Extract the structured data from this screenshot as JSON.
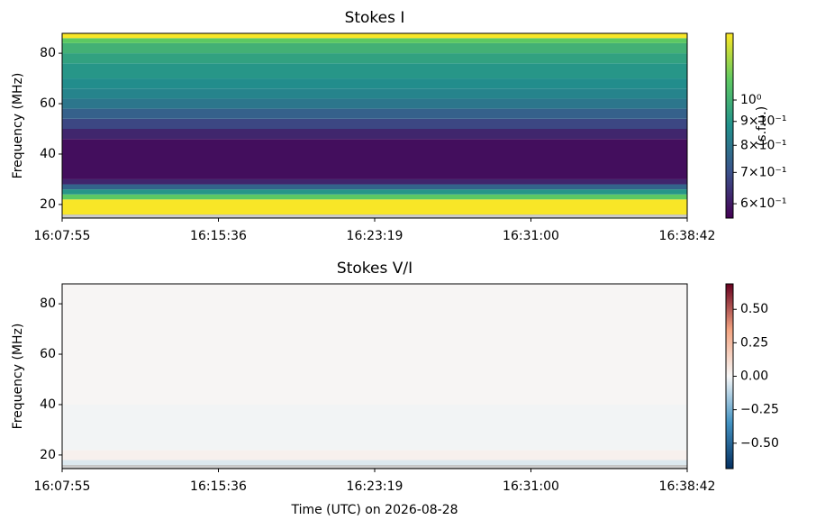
{
  "chart_data": [
    {
      "type": "heatmap",
      "title": "Stokes I",
      "ylabel": "Frequency (MHz)",
      "xticks": [
        "16:07:55",
        "16:15:36",
        "16:23:19",
        "16:31:00",
        "16:38:42"
      ],
      "ylim": [
        14.6,
        87.9
      ],
      "yticks": [
        20,
        40,
        60,
        80
      ],
      "colormap": "viridis",
      "bands": {
        "edges": [
          14.6,
          16,
          22,
          24,
          26,
          28,
          30,
          46,
          50,
          54,
          58,
          62,
          66,
          70,
          76,
          80,
          84,
          86,
          87.9
        ],
        "values": [
          null,
          1.38,
          1.1,
          0.9,
          0.75,
          0.62,
          0.58,
          0.62,
          0.68,
          0.74,
          0.8,
          0.84,
          0.87,
          0.9,
          0.94,
          1.0,
          1.1,
          1.38
        ]
      },
      "colorbar": {
        "label": "(s.f.u.)",
        "scale": "log",
        "lim": [
          0.559,
          1.389
        ],
        "ticks": [
          {
            "value": 1,
            "label": "10⁰"
          },
          {
            "value": 0.9,
            "label": "9×10⁻¹"
          },
          {
            "value": 0.8,
            "label": "8×10⁻¹"
          },
          {
            "value": 0.7,
            "label": "7×10⁻¹"
          },
          {
            "value": 0.6,
            "label": "6×10⁻¹"
          }
        ]
      }
    },
    {
      "type": "heatmap",
      "title": "Stokes V/I",
      "ylabel": "Frequency (MHz)",
      "xlabel": "Time (UTC) on 2026-08-28",
      "xticks": [
        "16:07:55",
        "16:15:36",
        "16:23:19",
        "16:31:00",
        "16:38:42"
      ],
      "ylim": [
        14.6,
        87.9
      ],
      "yticks": [
        20,
        40,
        60,
        80
      ],
      "colormap": "RdBu_r",
      "bands": {
        "edges": [
          14.6,
          16,
          18,
          22,
          40,
          87.9
        ],
        "values": [
          null,
          -0.05,
          0.03,
          -0.01,
          0.01
        ]
      },
      "colorbar": {
        "scale": "linear",
        "lim": [
          -0.69,
          0.69
        ],
        "ticks": [
          {
            "value": 0.5,
            "label": "0.50"
          },
          {
            "value": 0.25,
            "label": "0.25"
          },
          {
            "value": 0,
            "label": "0.00"
          },
          {
            "value": -0.25,
            "label": "−0.25"
          },
          {
            "value": -0.5,
            "label": "−0.50"
          }
        ]
      }
    }
  ]
}
